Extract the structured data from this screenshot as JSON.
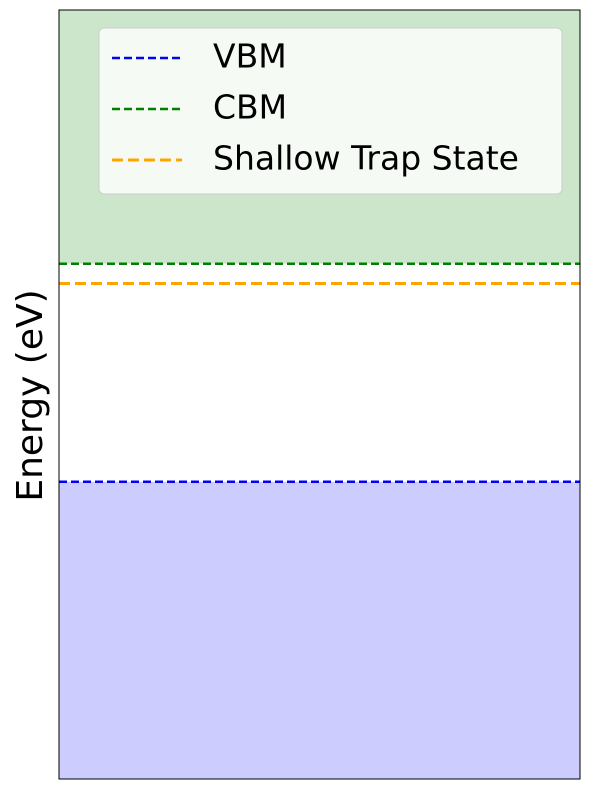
{
  "chart_data": {
    "type": "line",
    "title": "",
    "xlabel": "",
    "ylabel": "Energy (eV)",
    "ylim": [
      -1.5,
      2.38
    ],
    "grid": false,
    "x_ticks_visible": false,
    "y_ticks_visible": false,
    "legend_placement": "top-right",
    "levels": [
      {
        "name": "VBM",
        "energy": 0.0,
        "color": "#0000ff",
        "linestyle": "dashed"
      },
      {
        "name": "CBM",
        "energy": 1.1,
        "color": "#008000",
        "linestyle": "dashed"
      },
      {
        "name": "Shallow Trap State",
        "energy": 1.0,
        "color": "#ffa500",
        "linestyle": "dashed"
      }
    ],
    "bands": [
      {
        "name": "valence-band",
        "from": -1.5,
        "to": 0.0,
        "color": "#0000ff",
        "alpha": 0.2
      },
      {
        "name": "conduction-band",
        "from": 1.1,
        "to": 2.38,
        "color": "#008000",
        "alpha": 0.2
      }
    ]
  }
}
